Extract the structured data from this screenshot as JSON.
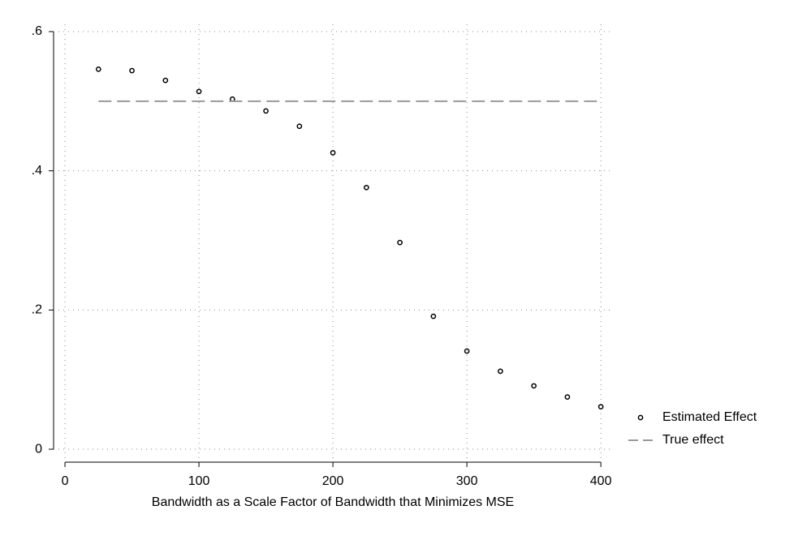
{
  "chart_data": {
    "type": "scatter",
    "xlabel": "Bandwidth as a Scale Factor of Bandwidth that Minimizes MSE",
    "xlim": [
      -8.5,
      409
    ],
    "ylim": [
      -0.0186,
      0.6105
    ],
    "xticks": [
      0,
      100,
      200,
      300,
      400
    ],
    "yticks": [
      0,
      {
        "value": 0.2,
        "label": ".2"
      },
      {
        "value": 0.4,
        "label": ".4"
      },
      {
        "value": 0.6,
        "label": ".6"
      }
    ],
    "grid": true,
    "legend": "right",
    "series": [
      {
        "name": "Estimated Effect",
        "color": "#000000",
        "marker": "circle",
        "x": [
          25,
          50,
          75,
          100,
          125,
          150,
          175,
          200,
          225,
          250,
          275,
          300,
          325,
          350,
          375,
          400
        ],
        "values": [
          0.546,
          0.544,
          0.53,
          0.514,
          0.503,
          0.486,
          0.464,
          0.426,
          0.376,
          0.297,
          0.191,
          0.141,
          0.112,
          0.091,
          0.075,
          0.061
        ]
      },
      {
        "name": "True effect",
        "color": "#999999",
        "line": "dashed",
        "x": [
          25,
          400
        ],
        "values": [
          0.5,
          0.5
        ]
      }
    ]
  }
}
